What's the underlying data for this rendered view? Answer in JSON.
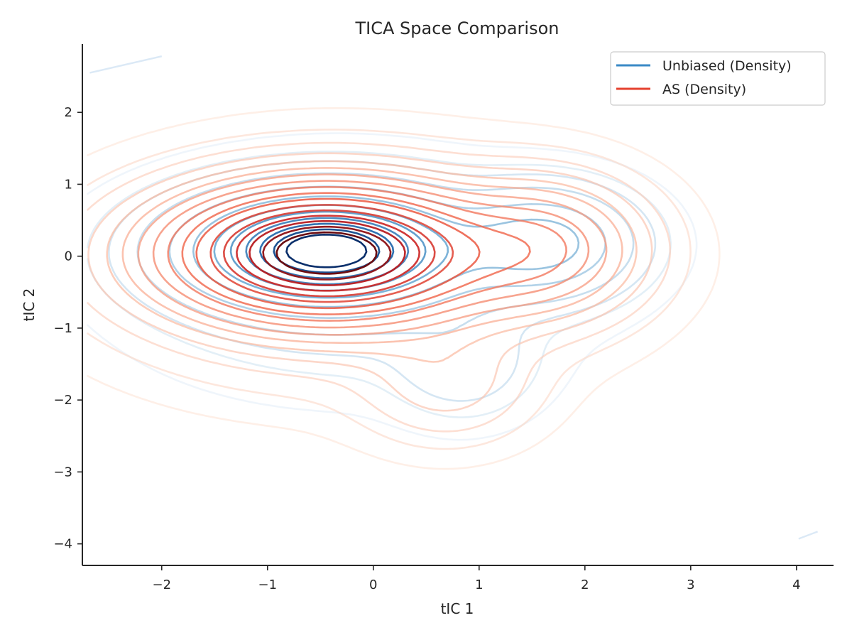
{
  "chart_data": {
    "type": "contour",
    "title": "TICA Space Comparison",
    "xlabel": "tIC 1",
    "ylabel": "tIC 2",
    "xlim": [
      -2.75,
      4.35
    ],
    "ylim": [
      -4.3,
      2.95
    ],
    "xticks": [
      -2,
      -1,
      0,
      1,
      2,
      3,
      4
    ],
    "yticks": [
      -4,
      -3,
      -2,
      -1,
      0,
      1,
      2
    ],
    "xtick_labels": [
      "−2",
      "−1",
      "0",
      "1",
      "2",
      "3",
      "4"
    ],
    "ytick_labels": [
      "−4",
      "−3",
      "−2",
      "−1",
      "0",
      "1",
      "2"
    ],
    "grid": false,
    "legend_position": "top-right",
    "series": [
      {
        "name": "Unbiased (Density)",
        "color": "#3a8ac6",
        "colormap": "Blues",
        "peaks": [
          {
            "x": -0.45,
            "y": 0.08,
            "sx": 0.75,
            "sy": 0.45,
            "w": 1.0
          },
          {
            "x": 1.6,
            "y": 0.18,
            "sx": 0.48,
            "sy": 0.42,
            "w": 0.33
          },
          {
            "x": 0.85,
            "y": -1.5,
            "sx": 0.4,
            "sy": 0.45,
            "w": 0.05
          },
          {
            "x": -0.2,
            "y": -0.3,
            "sx": 1.1,
            "sy": 0.8,
            "w": 0.06
          }
        ],
        "levels": [
          0.004,
          0.015,
          0.03,
          0.07,
          0.16,
          0.27,
          0.4,
          0.52,
          0.64,
          0.75,
          0.85,
          0.93
        ]
      },
      {
        "name": "AS (Density)",
        "color": "#e5412e",
        "colormap": "Reds",
        "peaks": [
          {
            "x": -0.45,
            "y": 0.05,
            "sx": 0.85,
            "sy": 0.52,
            "w": 1.0
          },
          {
            "x": 1.6,
            "y": 0.1,
            "sx": 0.55,
            "sy": 0.55,
            "w": 0.22
          },
          {
            "x": 0.7,
            "y": -1.8,
            "sx": 0.5,
            "sy": 0.5,
            "w": 0.05
          },
          {
            "x": -0.3,
            "y": -0.2,
            "sx": 1.3,
            "sy": 0.9,
            "w": 0.08
          }
        ],
        "levels": [
          0.004,
          0.012,
          0.025,
          0.045,
          0.07,
          0.1,
          0.14,
          0.19,
          0.25,
          0.32,
          0.4,
          0.49,
          0.58,
          0.67,
          0.76,
          0.85,
          0.93
        ]
      }
    ],
    "stray_segments": [
      {
        "series": "AS (Density)",
        "points": [
          [
            -2.68,
            2.55
          ],
          [
            -2.0,
            2.78
          ]
        ]
      },
      {
        "series": "AS (Density)",
        "points": [
          [
            4.02,
            -3.93
          ],
          [
            4.2,
            -3.83
          ]
        ]
      }
    ]
  }
}
